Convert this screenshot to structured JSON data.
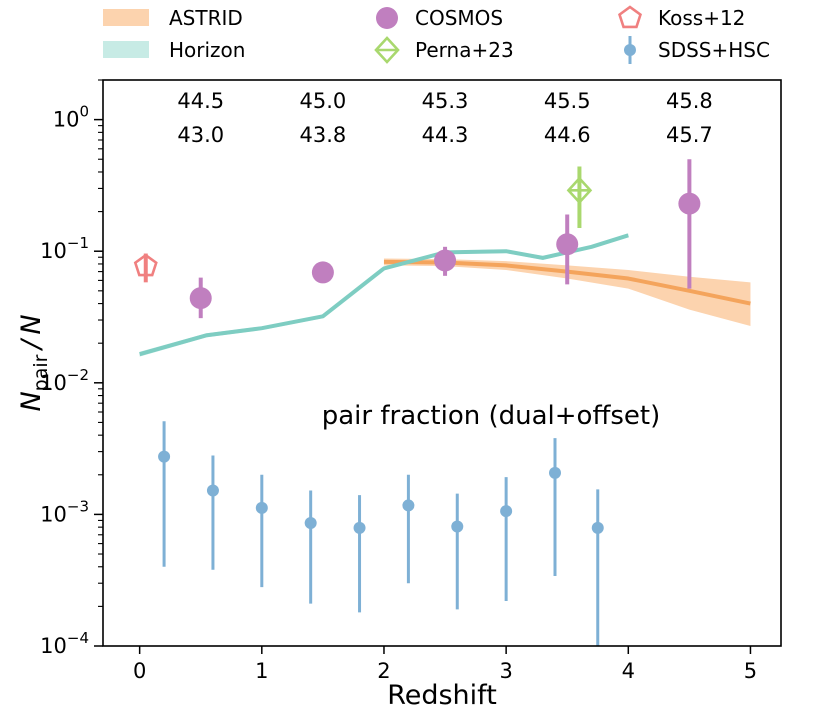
{
  "chart_data": {
    "type": "scatter",
    "title": "",
    "xlabel": "Redshift",
    "ylabel": "N_pair / N",
    "ylabel_parts": {
      "main": "N",
      "sub": "pair",
      "tail": " / N"
    },
    "xlim": [
      -0.3,
      5.25
    ],
    "ylim": [
      0.0001,
      2.0
    ],
    "yscale": "log",
    "grid": false,
    "legend_position": "top",
    "x_ticks": [
      {
        "value": 0,
        "label": "0"
      },
      {
        "value": 1,
        "label": "1"
      },
      {
        "value": 2,
        "label": "2"
      },
      {
        "value": 3,
        "label": "3"
      },
      {
        "value": 4,
        "label": "4"
      },
      {
        "value": 5,
        "label": "5"
      }
    ],
    "y_ticks": [
      {
        "value": 0.0001,
        "base": "10",
        "exp": "−4"
      },
      {
        "value": 0.001,
        "base": "10",
        "exp": "−3"
      },
      {
        "value": 0.01,
        "base": "10",
        "exp": "−2"
      },
      {
        "value": 0.1,
        "base": "10",
        "exp": "−1"
      },
      {
        "value": 1,
        "base": "10",
        "exp": "0"
      }
    ],
    "annotation": "pair fraction (dual+offset)",
    "top_labels": [
      {
        "x": 0.5,
        "upper": "44.5",
        "lower": "43.0"
      },
      {
        "x": 1.5,
        "upper": "45.0",
        "lower": "43.8"
      },
      {
        "x": 2.5,
        "upper": "45.3",
        "lower": "44.3"
      },
      {
        "x": 3.5,
        "upper": "45.5",
        "lower": "44.6"
      },
      {
        "x": 4.5,
        "upper": "45.8",
        "lower": "45.7"
      }
    ],
    "series": [
      {
        "name": "ASTRID",
        "kind": "band-line",
        "color": "#f4a45c",
        "band_color": "#fcd3ae",
        "points": [
          {
            "x": 2.0,
            "y": 0.083,
            "lo": 0.078,
            "hi": 0.088
          },
          {
            "x": 2.5,
            "y": 0.082,
            "lo": 0.077,
            "hi": 0.087
          },
          {
            "x": 3.0,
            "y": 0.078,
            "lo": 0.072,
            "hi": 0.084
          },
          {
            "x": 3.5,
            "y": 0.07,
            "lo": 0.062,
            "hi": 0.078
          },
          {
            "x": 4.0,
            "y": 0.062,
            "lo": 0.052,
            "hi": 0.072
          },
          {
            "x": 4.5,
            "y": 0.05,
            "lo": 0.036,
            "hi": 0.064
          },
          {
            "x": 5.0,
            "y": 0.04,
            "lo": 0.027,
            "hi": 0.058
          }
        ]
      },
      {
        "name": "Horizon",
        "kind": "band-line",
        "color": "#7ecdc2",
        "band_color": "#c7ebe5",
        "points": [
          {
            "x": 0.0,
            "y": 0.0165,
            "lo": 0.0158,
            "hi": 0.0172
          },
          {
            "x": 0.55,
            "y": 0.023,
            "lo": 0.0222,
            "hi": 0.0238
          },
          {
            "x": 1.0,
            "y": 0.026,
            "lo": 0.0252,
            "hi": 0.0268
          },
          {
            "x": 1.5,
            "y": 0.032,
            "lo": 0.031,
            "hi": 0.033
          },
          {
            "x": 2.0,
            "y": 0.074,
            "lo": 0.072,
            "hi": 0.076
          },
          {
            "x": 2.5,
            "y": 0.098,
            "lo": 0.095,
            "hi": 0.101
          },
          {
            "x": 3.0,
            "y": 0.1,
            "lo": 0.097,
            "hi": 0.103
          },
          {
            "x": 3.3,
            "y": 0.089,
            "lo": 0.086,
            "hi": 0.092
          },
          {
            "x": 3.7,
            "y": 0.108,
            "lo": 0.105,
            "hi": 0.111
          },
          {
            "x": 4.0,
            "y": 0.132,
            "lo": 0.128,
            "hi": 0.136
          }
        ]
      },
      {
        "name": "COSMOS",
        "kind": "marker-circle-large",
        "color": "#c07fbf",
        "points": [
          {
            "x": 0.5,
            "y": 0.044,
            "lo": 0.031,
            "hi": 0.063
          },
          {
            "x": 1.5,
            "y": 0.069,
            "lo": 0.058,
            "hi": 0.079
          },
          {
            "x": 2.5,
            "y": 0.085,
            "lo": 0.065,
            "hi": 0.108
          },
          {
            "x": 3.5,
            "y": 0.113,
            "lo": 0.056,
            "hi": 0.19
          },
          {
            "x": 4.5,
            "y": 0.23,
            "lo": 0.052,
            "hi": 0.5
          }
        ]
      },
      {
        "name": "Perna+23",
        "kind": "marker-diamond-open",
        "color": "#a9d86e",
        "points": [
          {
            "x": 3.6,
            "y": 0.29,
            "lo": 0.15,
            "hi": 0.44
          }
        ]
      },
      {
        "name": "Koss+12",
        "kind": "marker-pentagon-open",
        "color": "#f08080",
        "points": [
          {
            "x": 0.05,
            "y": 0.077,
            "lo": 0.058,
            "hi": 0.096
          }
        ]
      },
      {
        "name": "SDSS+HSC",
        "kind": "marker-circle-small",
        "color": "#7eb0d5",
        "points": [
          {
            "x": 0.2,
            "y": 0.00275,
            "lo": 0.0004,
            "hi": 0.0051
          },
          {
            "x": 0.6,
            "y": 0.00152,
            "lo": 0.00038,
            "hi": 0.0028
          },
          {
            "x": 1.0,
            "y": 0.00112,
            "lo": 0.00028,
            "hi": 0.002
          },
          {
            "x": 1.4,
            "y": 0.00086,
            "lo": 0.00021,
            "hi": 0.00152
          },
          {
            "x": 1.8,
            "y": 0.00079,
            "lo": 0.00018,
            "hi": 0.0014
          },
          {
            "x": 2.2,
            "y": 0.00117,
            "lo": 0.0003,
            "hi": 0.002
          },
          {
            "x": 2.6,
            "y": 0.00081,
            "lo": 0.00019,
            "hi": 0.00144
          },
          {
            "x": 3.0,
            "y": 0.00106,
            "lo": 0.00022,
            "hi": 0.00192
          },
          {
            "x": 3.4,
            "y": 0.00207,
            "lo": 0.00034,
            "hi": 0.0038
          },
          {
            "x": 3.75,
            "y": 0.00079,
            "lo": 0.0001,
            "hi": 0.00155
          }
        ]
      }
    ],
    "legend": [
      {
        "label": "ASTRID",
        "series": 0,
        "col": 0,
        "row": 0
      },
      {
        "label": "COSMOS",
        "series": 2,
        "col": 1,
        "row": 0
      },
      {
        "label": "Koss+12",
        "series": 4,
        "col": 2,
        "row": 0
      },
      {
        "label": "Horizon",
        "series": 1,
        "col": 0,
        "row": 1
      },
      {
        "label": "Perna+23",
        "series": 3,
        "col": 1,
        "row": 1
      },
      {
        "label": "SDSS+HSC",
        "series": 5,
        "col": 2,
        "row": 1
      }
    ]
  }
}
